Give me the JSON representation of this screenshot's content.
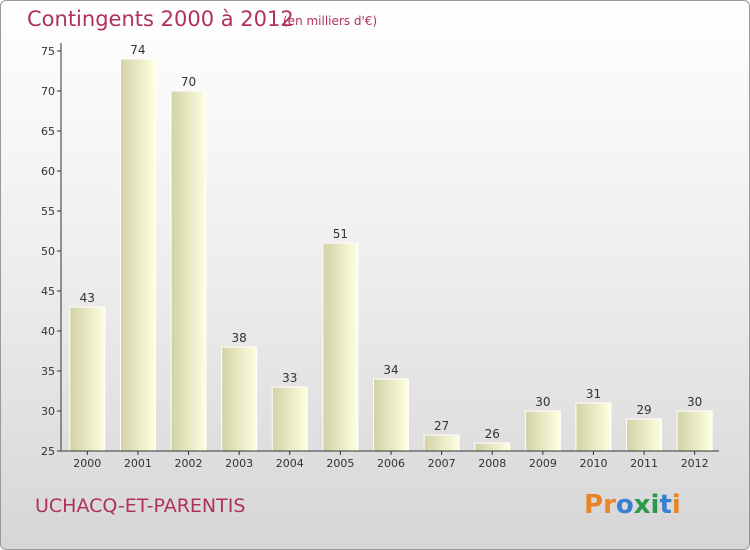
{
  "header": {
    "title": "Contingents 2000 à 2012",
    "subtitle": "(en milliers d'€)"
  },
  "footer": {
    "commune": "UCHACQ-ET-PARENTIS",
    "brand": "Proxiti"
  },
  "colors": {
    "title": "#b03060",
    "bar_light": "#ffffe0",
    "bar_dark": "#d6d6aa",
    "axis": "#333333",
    "brand_letters": [
      "#e8842a",
      "#e8842a",
      "#3a7fd0",
      "#2a9a4a",
      "#2a9a4a",
      "#3a7fd0",
      "#e8842a"
    ]
  },
  "chart_data": {
    "type": "bar",
    "categories": [
      "2000",
      "2001",
      "2002",
      "2003",
      "2004",
      "2005",
      "2006",
      "2007",
      "2008",
      "2009",
      "2010",
      "2011",
      "2012"
    ],
    "values": [
      43,
      74,
      70,
      38,
      33,
      51,
      34,
      27,
      26,
      30,
      31,
      29,
      30
    ],
    "value_labels": [
      "43",
      "74",
      "70",
      "38",
      "33",
      "51",
      "34",
      "27",
      "26",
      "30",
      "31",
      "29",
      "30"
    ],
    "title": "Contingents 2000 à 2012",
    "xlabel": "",
    "ylabel": "",
    "ylim": [
      25,
      75
    ],
    "yticks": [
      25,
      30,
      35,
      40,
      45,
      50,
      55,
      60,
      65,
      70,
      75
    ],
    "grid": false,
    "legend": "none"
  }
}
